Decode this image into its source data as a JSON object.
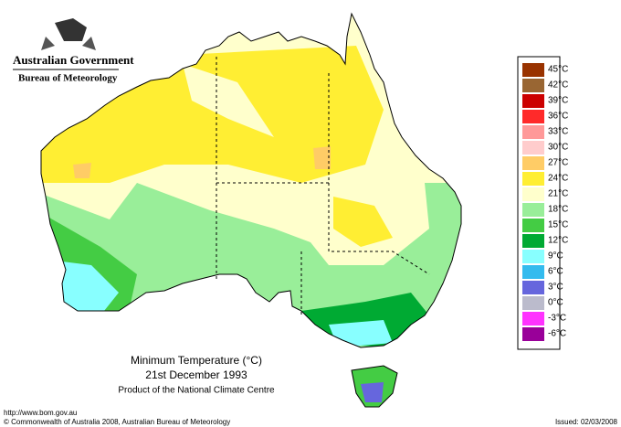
{
  "header": {
    "government": "Australian Government",
    "bureau": "Bureau of Meteorology"
  },
  "map": {
    "title": "Minimum Temperature (°C)",
    "date": "21st December 1993",
    "product": "Product of the National Climate Centre"
  },
  "legend": {
    "labels": [
      "45°C",
      "42°C",
      "39°C",
      "36°C",
      "33°C",
      "30°C",
      "27°C",
      "24°C",
      "21°C",
      "18°C",
      "15°C",
      "12°C",
      "9°C",
      "6°C",
      "3°C",
      "0°C",
      "-3°C",
      "-6°C"
    ],
    "colors": [
      "#993300",
      "#996633",
      "#cc0000",
      "#ff2a2a",
      "#ff9999",
      "#ffcccc",
      "#ffcc66",
      "#ffee33",
      "#ffffcc",
      "#99ee99",
      "#44cc44",
      "#00aa33",
      "#88ffff",
      "#33bbee",
      "#6666dd",
      "#bbbbcc",
      "#ff33ff",
      "#990099"
    ]
  },
  "footer": {
    "url": "http://www.bom.gov.au",
    "copyright": "© Commonwealth of Australia 2008, Australian Bureau of Meteorology",
    "issued": "Issued: 02/03/2008"
  }
}
